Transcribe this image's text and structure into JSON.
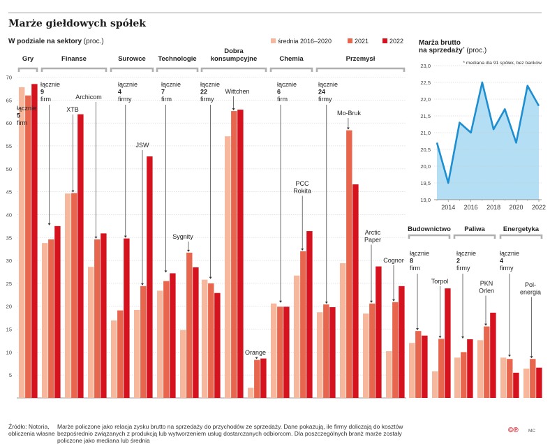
{
  "title": "Marże giełdowych spółek",
  "left_panel": {
    "heading": "W podziale na sektory",
    "heading_unit": "(proc.)"
  },
  "colors": {
    "avg": "#f7b79c",
    "y2021": "#e8664d",
    "y2022": "#d6121f",
    "line": "#1d8fd1",
    "area": "#b4def3"
  },
  "legend": [
    {
      "name": "średnia 2016–2020",
      "color": "#f7b79c"
    },
    {
      "name": "2021",
      "color": "#e8664d"
    },
    {
      "name": "2022",
      "color": "#d6121f"
    }
  ],
  "chart_data": [
    {
      "type": "bar",
      "ylim": [
        0,
        70
      ],
      "yticks": [
        "5",
        "10",
        "15",
        "20",
        "25",
        "30",
        "35",
        "40",
        "45",
        "50",
        "55",
        "60",
        "65",
        "70"
      ],
      "series_names": [
        "średnia 2016–2020",
        "2021",
        "2022"
      ],
      "sectors": [
        {
          "name": "Gry",
          "count_label": "łącznie",
          "count": "5",
          "unit": "firm",
          "groups": [
            {
              "values": [
                67.8,
                66.0,
                68.5
              ]
            }
          ]
        },
        {
          "name": "Finanse",
          "count_label": "łącznie",
          "count": "9",
          "unit": "firm",
          "groups": [
            {
              "values": [
                33.8,
                34.6,
                37.5
              ]
            },
            {
              "label": "XTB",
              "values": [
                44.6,
                44.7,
                61.9
              ]
            },
            {
              "label": "Archicom",
              "values": [
                28.6,
                34.6,
                35.9
              ]
            }
          ]
        },
        {
          "name": "Surowce",
          "count_label": "łącznie",
          "count": "4",
          "unit": "firmy",
          "groups": [
            {
              "values": [
                16.9,
                19.1,
                34.8
              ]
            },
            {
              "label": "JSW",
              "values": [
                19.2,
                24.4,
                52.7
              ]
            }
          ]
        },
        {
          "name": "Technologie",
          "count_label": "łącznie",
          "count": "7",
          "unit": "firm",
          "groups": [
            {
              "values": [
                23.4,
                25.5,
                27.2
              ]
            },
            {
              "label": "Sygnity",
              "values": [
                14.8,
                31.7,
                28.5
              ]
            }
          ]
        },
        {
          "name": "Dobra konsumpcyjne",
          "count_label": "łącznie",
          "count": "22",
          "unit": "firmy",
          "groups": [
            {
              "values": [
                25.8,
                25.0,
                22.9
              ]
            },
            {
              "label": "Wittchen",
              "values": [
                57.1,
                62.6,
                62.9
              ]
            },
            {
              "label": "Orange",
              "values": [
                2.2,
                8.3,
                8.6
              ]
            }
          ]
        },
        {
          "name": "Chemia",
          "count_label": "łącznie",
          "count": "6",
          "unit": "firm",
          "groups": [
            {
              "values": [
                20.6,
                19.9,
                19.9
              ]
            },
            {
              "label": "PCC Rokita",
              "values": [
                26.7,
                32.0,
                36.4
              ]
            }
          ]
        },
        {
          "name": "Przemysł",
          "count_label": "łącznie",
          "count": "24",
          "unit": "firmy",
          "groups": [
            {
              "values": [
                18.7,
                20.4,
                19.8
              ]
            },
            {
              "label": "Mo-Bruk",
              "values": [
                29.4,
                58.4,
                46.6
              ]
            },
            {
              "label": "Arctic Paper",
              "values": [
                18.4,
                20.6,
                28.7
              ]
            },
            {
              "label": "Cognor",
              "values": [
                10.2,
                20.9,
                24.4
              ]
            }
          ]
        },
        {
          "name": "Budownictwo",
          "count_label": "łącznie",
          "count": "8",
          "unit": "firm",
          "groups": [
            {
              "values": [
                12.0,
                14.6,
                13.6
              ]
            },
            {
              "label": "Torpol",
              "values": [
                5.8,
                12.9,
                23.9
              ]
            }
          ]
        },
        {
          "name": "Paliwa",
          "count_label": "łącznie",
          "count": "2",
          "unit": "firmy",
          "groups": [
            {
              "values": [
                8.8,
                10.0,
                12.8
              ]
            },
            {
              "label": "PKN Orlen",
              "values": [
                12.6,
                15.6,
                18.6
              ]
            }
          ]
        },
        {
          "name": "Energetyka",
          "count_label": "łącznie",
          "count": "4",
          "unit": "firmy",
          "groups": [
            {
              "values": [
                8.8,
                8.5,
                5.5
              ]
            },
            {
              "label": "Pol-energia",
              "values": [
                6.4,
                8.5,
                6.6
              ]
            }
          ]
        }
      ]
    },
    {
      "type": "area",
      "title": "Marża brutto na sprzedaży",
      "title_mark": "*",
      "unit": "(proc.)",
      "note": "* mediana dla 91 spółek, bez banków",
      "ylim": [
        19.0,
        23.0
      ],
      "yticks": [
        "19,0",
        "19,5",
        "20,0",
        "20,5",
        "21,0",
        "21,5",
        "22,0",
        "22,5",
        "23,0"
      ],
      "xticks": [
        "2014",
        "2016",
        "2018",
        "2020",
        "2022"
      ],
      "x": [
        2013,
        2014,
        2015,
        2016,
        2017,
        2018,
        2019,
        2020,
        2021,
        2022
      ],
      "values": [
        20.7,
        19.5,
        21.3,
        21.0,
        22.5,
        21.1,
        21.7,
        20.7,
        22.4,
        21.8
      ]
    }
  ],
  "footer": {
    "source": "Źródło: Notoria, obliczenia własne",
    "note": "Marże policzone jako relacja zysku brutto na sprzedaży do przychodów ze sprzedaży. Dane pokazują, ile firmy doliczają do kosztów bezpośrednio związanych z produkcją lub wytworzeniem usług dostarczanych odbiorcom. Dla poszczególnych branż marże zostały policzone jako mediana lub średnia",
    "logo": "©℗",
    "author": "MC"
  }
}
